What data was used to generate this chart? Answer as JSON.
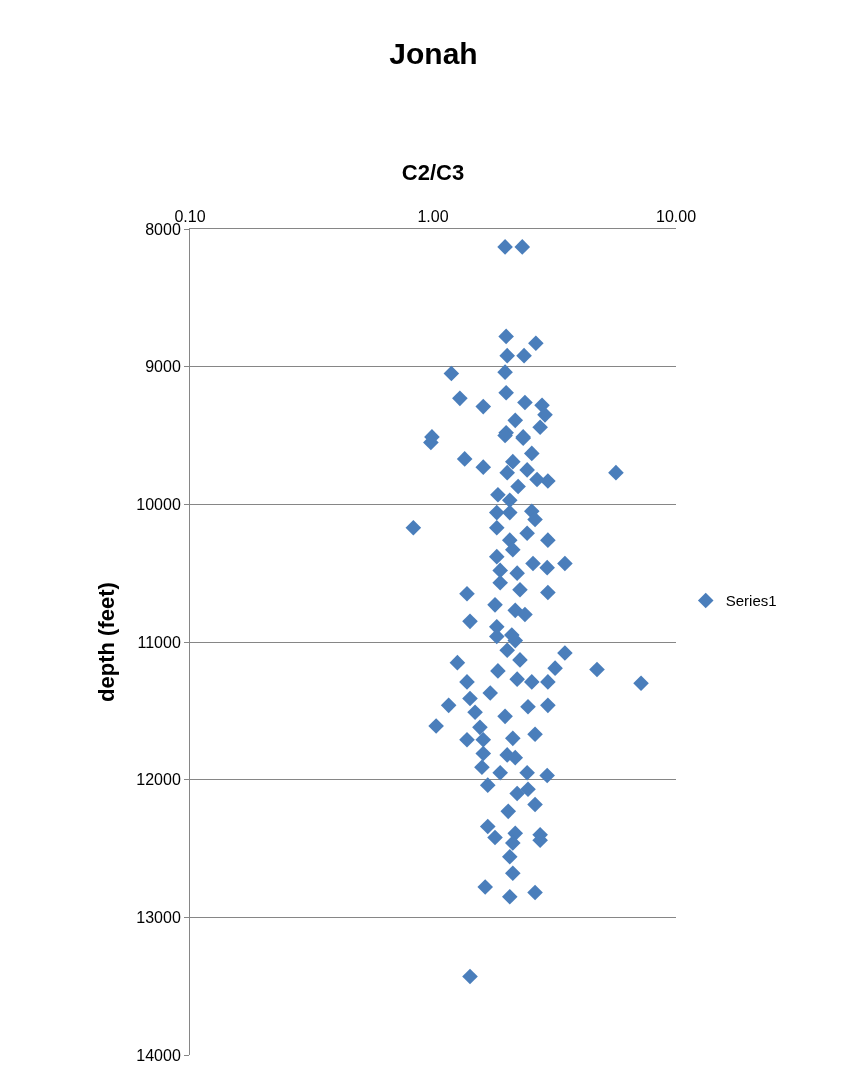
{
  "chart_data": {
    "type": "scatter",
    "title": "Jonah",
    "xlabel": "C2/C3",
    "ylabel": "depth (feet)",
    "log": "x",
    "grid": "y",
    "legend": "right",
    "marker": "diamond",
    "xlim": [
      0.1,
      10
    ],
    "xticks": [
      {
        "value": 0.1,
        "label": "0.10"
      },
      {
        "value": 1,
        "label": "1.00"
      },
      {
        "value": 10,
        "label": "10.00"
      }
    ],
    "ylim": [
      14000,
      8000
    ],
    "yticks": [
      8000,
      9000,
      10000,
      11000,
      12000,
      13000,
      14000
    ],
    "series": [
      {
        "name": "Series1",
        "color": "#4a7ebb",
        "x": [
          1.98,
          2.33,
          2.0,
          2.65,
          2.02,
          2.37,
          1.19,
          1.98,
          1.29,
          1.61,
          2.0,
          2.39,
          2.81,
          2.89,
          2.18,
          2.76,
          0.99,
          2.0,
          2.35,
          0.98,
          1.98,
          2.35,
          1.35,
          1.61,
          2.13,
          2.55,
          2.44,
          2.02,
          2.97,
          2.68,
          5.66,
          2.24,
          1.85,
          2.07,
          0.83,
          1.83,
          2.07,
          2.55,
          2.63,
          1.83,
          2.07,
          2.44,
          2.97,
          1.83,
          2.13,
          2.58,
          2.95,
          3.49,
          1.89,
          2.22,
          1.89,
          2.28,
          2.97,
          1.38,
          1.8,
          2.18,
          2.39,
          1.42,
          1.83,
          2.11,
          1.83,
          2.18,
          2.02,
          2.28,
          3.49,
          1.26,
          1.85,
          3.18,
          4.73,
          7.18,
          1.38,
          2.22,
          2.55,
          2.97,
          1.42,
          1.72,
          1.16,
          1.49,
          1.98,
          2.46,
          2.97,
          1.03,
          1.56,
          1.38,
          1.61,
          2.13,
          2.63,
          1.61,
          2.02,
          2.18,
          1.59,
          1.89,
          2.44,
          2.95,
          1.68,
          2.22,
          2.46,
          2.04,
          2.63,
          1.68,
          2.18,
          2.76,
          1.8,
          2.13,
          2.76,
          2.07,
          2.13,
          1.64,
          2.07,
          2.63,
          1.42
        ],
        "values": [
          8130,
          8130,
          8780,
          8830,
          8920,
          8920,
          9050,
          9040,
          9230,
          9290,
          9190,
          9260,
          9280,
          9350,
          9390,
          9440,
          9510,
          9480,
          9510,
          9550,
          9500,
          9520,
          9670,
          9730,
          9690,
          9630,
          9750,
          9770,
          9830,
          9820,
          9770,
          9870,
          9930,
          9970,
          10170,
          10060,
          10060,
          10050,
          10110,
          10170,
          10260,
          10210,
          10260,
          10380,
          10330,
          10430,
          10460,
          10430,
          10480,
          10500,
          10570,
          10620,
          10640,
          10650,
          10730,
          10770,
          10800,
          10850,
          10890,
          10950,
          10960,
          10990,
          11060,
          11130,
          11080,
          11150,
          11210,
          11190,
          11200,
          11300,
          11290,
          11270,
          11290,
          11290,
          11410,
          11370,
          11460,
          11510,
          11540,
          11470,
          11460,
          11610,
          11620,
          11710,
          11710,
          11700,
          11670,
          11810,
          11820,
          11840,
          11910,
          11950,
          11950,
          11970,
          12040,
          12100,
          12070,
          12230,
          12180,
          12340,
          12390,
          12400,
          12420,
          12460,
          12440,
          12560,
          12680,
          12780,
          12850,
          12820,
          13430
        ]
      }
    ]
  }
}
